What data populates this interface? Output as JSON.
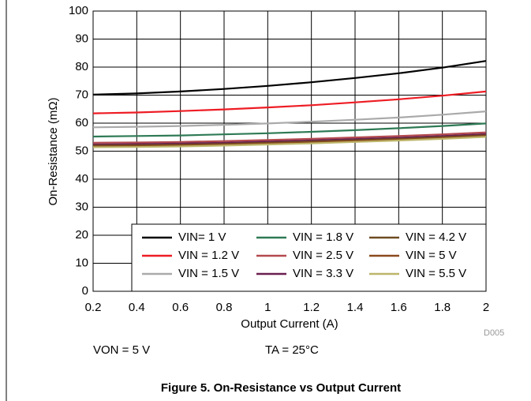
{
  "chart_data": {
    "type": "line",
    "xlabel": "Output Current (A)",
    "ylabel": "On-Resistance (mΩ)",
    "x": [
      0.2,
      0.4,
      0.6,
      0.8,
      1.0,
      1.2,
      1.4,
      1.6,
      1.8,
      2.0
    ],
    "xlim": [
      0.2,
      2
    ],
    "xticks": [
      0.2,
      0.4,
      0.6,
      0.8,
      1,
      1.2,
      1.4,
      1.6,
      1.8,
      2
    ],
    "ylim": [
      0,
      100
    ],
    "yticks": [
      0,
      10,
      20,
      30,
      40,
      50,
      60,
      70,
      80,
      90,
      100
    ],
    "grid": true,
    "legend": "lower right",
    "series": [
      {
        "name": "VIN= 1 V",
        "color": "#000000",
        "values": [
          70.2,
          70.6,
          71.3,
          72.2,
          73.3,
          74.6,
          76.1,
          77.8,
          79.8,
          82.2
        ]
      },
      {
        "name": "VIN = 1.2 V",
        "color": "#ee1c24",
        "values": [
          63.5,
          63.8,
          64.3,
          64.9,
          65.6,
          66.4,
          67.4,
          68.5,
          69.8,
          71.3
        ]
      },
      {
        "name": "VIN = 1.5 V",
        "color": "#aaaaaa",
        "values": [
          58.5,
          58.7,
          59.0,
          59.4,
          59.9,
          60.5,
          61.2,
          62.0,
          63.0,
          64.2
        ]
      },
      {
        "name": "VIN = 1.8 V",
        "color": "#2e7a55",
        "values": [
          55.2,
          55.4,
          55.6,
          56.0,
          56.4,
          56.9,
          57.5,
          58.2,
          59.0,
          59.9
        ]
      },
      {
        "name": "VIN = 2.5 V",
        "color": "#b44a4e",
        "values": [
          53.0,
          53.1,
          53.3,
          53.6,
          54.0,
          54.4,
          54.9,
          55.4,
          56.0,
          56.7
        ]
      },
      {
        "name": "VIN = 3.3 V",
        "color": "#6a1f50",
        "values": [
          52.4,
          52.5,
          52.7,
          53.0,
          53.4,
          53.8,
          54.3,
          54.8,
          55.4,
          56.1
        ]
      },
      {
        "name": "VIN = 4.2 V",
        "color": "#6e4b22",
        "values": [
          52.0,
          52.1,
          52.3,
          52.6,
          53.0,
          53.4,
          53.9,
          54.4,
          55.0,
          55.7
        ]
      },
      {
        "name": "VIN = 5 V",
        "color": "#8c4a1c",
        "values": [
          51.7,
          51.8,
          52.0,
          52.3,
          52.7,
          53.1,
          53.6,
          54.1,
          54.7,
          55.4
        ]
      },
      {
        "name": "VIN = 5.5 V",
        "color": "#bdb56a",
        "values": [
          51.4,
          51.5,
          51.7,
          52.0,
          52.4,
          52.8,
          53.3,
          53.8,
          54.4,
          55.1
        ]
      }
    ],
    "annotations": [
      "D005",
      "VON = 5 V",
      "TA = 25°C"
    ],
    "caption": "Figure 5. On-Resistance vs Output Current"
  }
}
